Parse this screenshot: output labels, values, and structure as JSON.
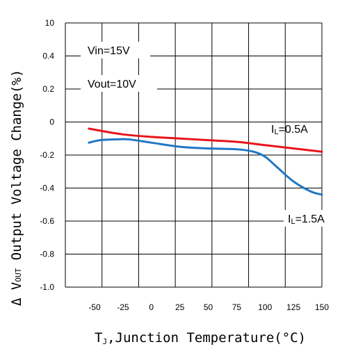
{
  "chart_data": {
    "type": "line",
    "title": "",
    "xlabel_main": "T",
    "xlabel_sub": "J",
    "xlabel_rest": ",Junction Temperature(°C)",
    "ylabel_prefix": "Δ V",
    "ylabel_sub": "OUT",
    "ylabel_rest": " Output Voltage Change(%)",
    "xlim": [
      -62,
      155
    ],
    "ylim": [
      -1.0,
      10
    ],
    "y_scale": "piecewise: 0 to 10 shown as top interval, then 0.2 steps",
    "x_ticks": [
      "-50",
      "-25",
      "0",
      "25",
      "50",
      "75",
      "100",
      "125",
      "150"
    ],
    "y_ticks": [
      "10",
      "0.4",
      "0.2",
      "0",
      "-0.2",
      "-0.4",
      "-0.6",
      "-0.8",
      "-1.0"
    ],
    "grid": true,
    "annotations": {
      "vin": "Vin=15V",
      "vout": "Vout=10V",
      "il1_main": "I",
      "il1_sub": "L",
      "il1_rest": "=0.5A",
      "il2_main": "I",
      "il2_sub": "L",
      "il2_rest": "=1.5A"
    },
    "series": [
      {
        "color": "#e8141b",
        "x": [
          -55,
          -25,
          0,
          25,
          50,
          75,
          100,
          125,
          150
        ],
        "y": [
          -0.04,
          -0.075,
          -0.09,
          -0.1,
          -0.11,
          -0.12,
          -0.14,
          -0.16,
          -0.18
        ]
      },
      {
        "color": "#1f77c4",
        "x": [
          -55,
          -45,
          -30,
          -20,
          0,
          25,
          50,
          75,
          90,
          100,
          110,
          125,
          140,
          150
        ],
        "y": [
          -0.125,
          -0.11,
          -0.105,
          -0.105,
          -0.125,
          -0.15,
          -0.16,
          -0.165,
          -0.18,
          -0.21,
          -0.27,
          -0.36,
          -0.42,
          -0.44
        ]
      }
    ]
  }
}
